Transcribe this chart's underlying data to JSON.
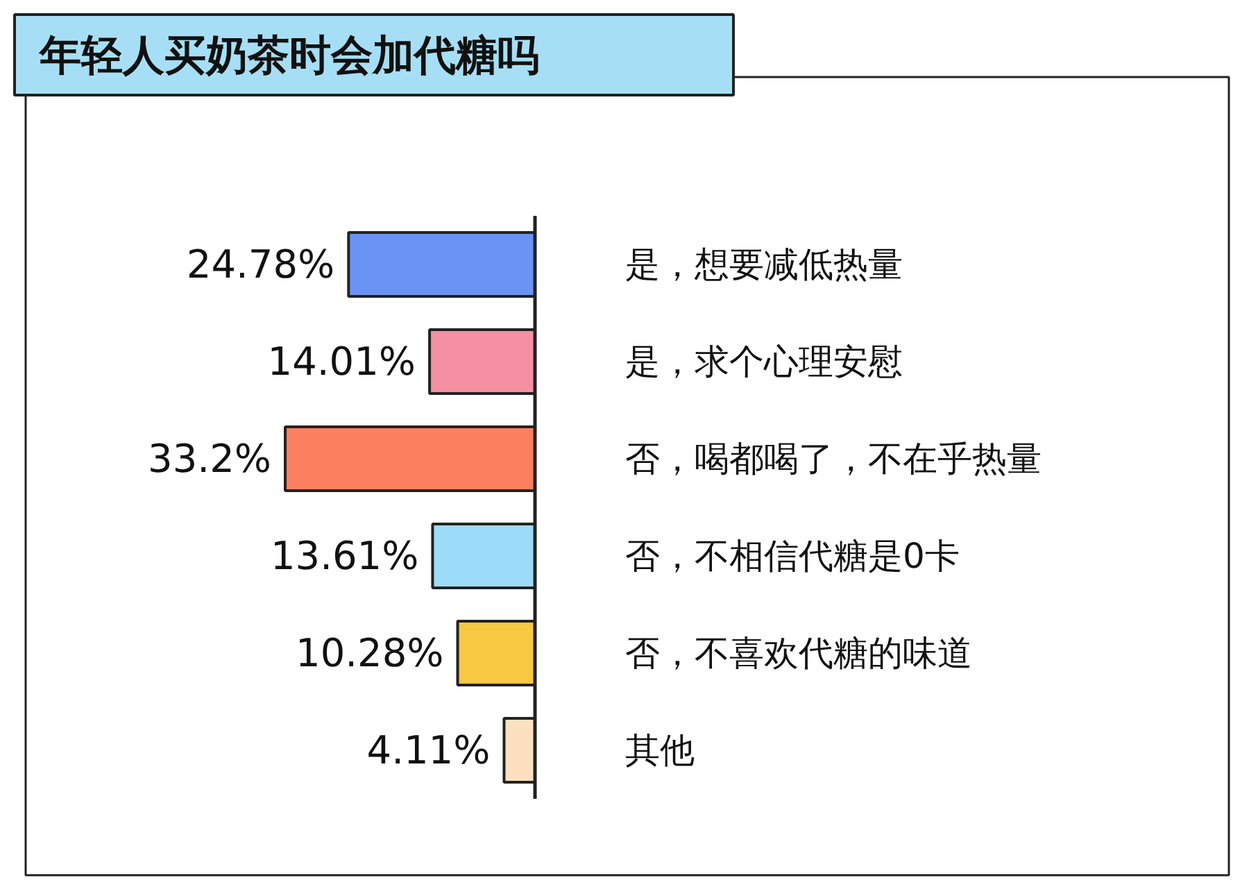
{
  "chart_data": {
    "type": "bar",
    "orientation": "horizontal",
    "title": "年轻人买奶茶时会加代糖吗",
    "categories": [
      "是，想要减低热量",
      "是，求个心理安慰",
      "否，喝都喝了，不在乎热量",
      "否，不相信代糖是0卡",
      "否，不喜欢代糖的味道",
      "其他"
    ],
    "values": [
      24.78,
      14.01,
      33.2,
      13.61,
      10.28,
      4.11
    ],
    "value_labels": [
      "24.78%",
      "14.01%",
      "33.2%",
      "13.61%",
      "10.28%",
      "4.11%"
    ],
    "colors": [
      "#6b93f5",
      "#f78fa3",
      "#fb8060",
      "#9ddcf8",
      "#f7c842",
      "#fde0c0"
    ]
  }
}
